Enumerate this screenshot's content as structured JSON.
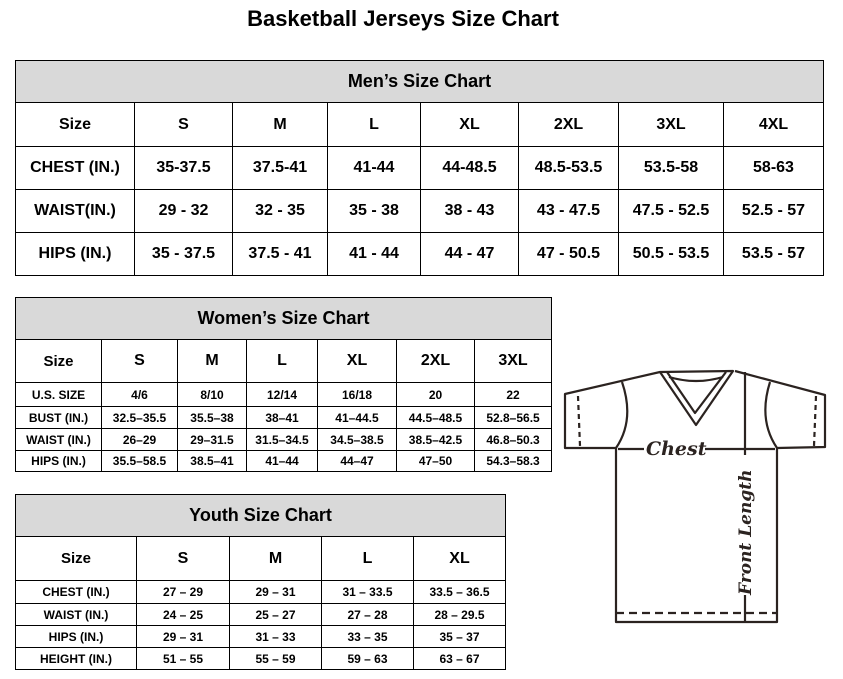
{
  "title": "Basketball Jerseys Size Chart",
  "men": {
    "heading": "Men’s Size Chart",
    "header": [
      "Size",
      "S",
      "M",
      "L",
      "XL",
      "2XL",
      "3XL",
      "4XL"
    ],
    "rows": [
      [
        "CHEST (IN.)",
        "35-37.5",
        "37.5-41",
        "41-44",
        "44-48.5",
        "48.5-53.5",
        "53.5-58",
        "58-63"
      ],
      [
        "WAIST(IN.)",
        "29 - 32",
        "32 - 35",
        "35 - 38",
        "38 - 43",
        "43 - 47.5",
        "47.5 - 52.5",
        "52.5 - 57"
      ],
      [
        "HIPS (IN.)",
        "35 - 37.5",
        "37.5 - 41",
        "41 - 44",
        "44 - 47",
        "47 - 50.5",
        "50.5 - 53.5",
        "53.5 - 57"
      ]
    ]
  },
  "women": {
    "heading": "Women’s Size Chart",
    "header": [
      "Size",
      "S",
      "M",
      "L",
      "XL",
      "2XL",
      "3XL"
    ],
    "rows": [
      [
        "U.S.  SIZE",
        "4/6",
        "8/10",
        "12/14",
        "16/18",
        "20",
        "22"
      ],
      [
        "BUST  (IN.)",
        "32.5–35.5",
        "35.5–38",
        "38–41",
        "41–44.5",
        "44.5–48.5",
        "52.8–56.5"
      ],
      [
        "WAIST  (IN.)",
        "26–29",
        "29–31.5",
        "31.5–34.5",
        "34.5–38.5",
        "38.5–42.5",
        "46.8–50.3"
      ],
      [
        "HIPS  (IN.)",
        "35.5–58.5",
        "38.5–41",
        "41–44",
        "44–47",
        "47–50",
        "54.3–58.3"
      ]
    ]
  },
  "youth": {
    "heading": "Youth Size Chart",
    "header": [
      "Size",
      "S",
      "M",
      "L",
      "XL"
    ],
    "rows": [
      [
        "CHEST  (IN.)",
        "27  –  29",
        "29  –  31",
        "31  –  33.5",
        "33.5  –  36.5"
      ],
      [
        "WAIST  (IN.)",
        "24  –  25",
        "25  –  27",
        "27  –  28",
        "28  –  29.5"
      ],
      [
        "HIPS  (IN.)",
        "29  –  31",
        "31  –  33",
        "33  –  35",
        "35  –  37"
      ],
      [
        "HEIGHT  (IN.)",
        "51  –  55",
        "55  –  59",
        "59  –  63",
        "63  –  67"
      ]
    ]
  },
  "diagram": {
    "chest_label": "Chest",
    "length_label": "Front Length"
  },
  "colors": {
    "header_bg": "#d9d9d9",
    "line": "#2b2320"
  }
}
